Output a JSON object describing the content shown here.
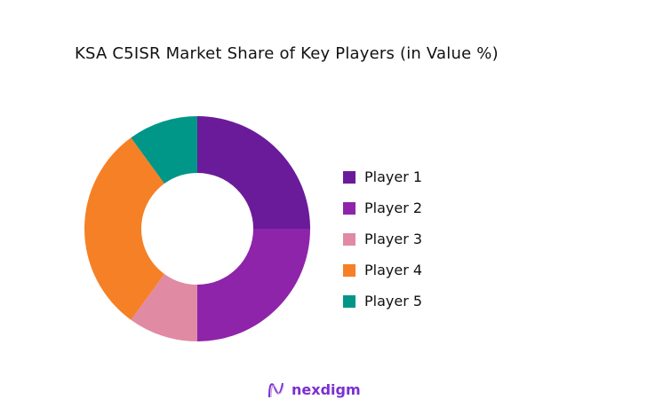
{
  "chart_data": {
    "type": "donut",
    "title": "KSA C5ISR Market Share of Key Players (in Value %)",
    "categories": [
      "Player 1",
      "Player 2",
      "Player 3",
      "Player 4",
      "Player 5"
    ],
    "values": [
      25,
      25,
      10,
      30,
      10
    ],
    "colors": [
      "#6a1b9a",
      "#8e24aa",
      "#e08aa4",
      "#f58025",
      "#009688"
    ],
    "legend_position": "right"
  },
  "branding": {
    "logo_text": "nexdigm"
  }
}
